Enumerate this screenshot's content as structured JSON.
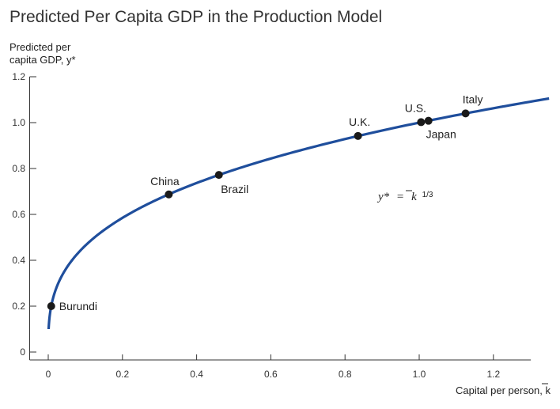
{
  "chart_data": {
    "type": "line",
    "title": "Predicted Per Capita GDP in the Production Model",
    "ylabel_line1": "Predicted per",
    "ylabel_line2": "capita GDP, y*",
    "xlabel": "Capital per person, k",
    "xlim": [
      0,
      1.35
    ],
    "ylim": [
      0,
      1.2
    ],
    "x_ticks": [
      "0",
      "0.2",
      "0.4",
      "0.6",
      "0.8",
      "1.0",
      "1.2"
    ],
    "x_tick_values": [
      0,
      0.2,
      0.4,
      0.6,
      0.8,
      1.0,
      1.2
    ],
    "y_ticks": [
      "0",
      "0.2",
      "0.4",
      "0.6",
      "0.8",
      "1.0",
      "1.2"
    ],
    "y_tick_values": [
      0,
      0.2,
      0.4,
      0.6,
      0.8,
      1.0,
      1.2
    ],
    "equation": {
      "lhs": "y*",
      "rhs": "k",
      "exponent": "1/3"
    },
    "curve": {
      "function": "y = k^(1/3)",
      "x_start": 0.001,
      "x_end": 1.35,
      "color": "#1f4e9c"
    },
    "points": [
      {
        "name": "Burundi",
        "x": 0.008,
        "y": 0.2
      },
      {
        "name": "China",
        "x": 0.325,
        "y": 0.687
      },
      {
        "name": "Brazil",
        "x": 0.46,
        "y": 0.772
      },
      {
        "name": "U.K.",
        "x": 0.835,
        "y": 0.942
      },
      {
        "name": "U.S.",
        "x": 1.005,
        "y": 1.002
      },
      {
        "name": "Japan",
        "x": 1.025,
        "y": 1.008
      },
      {
        "name": "Italy",
        "x": 1.125,
        "y": 1.04
      }
    ],
    "grid": false,
    "legend": "none"
  }
}
